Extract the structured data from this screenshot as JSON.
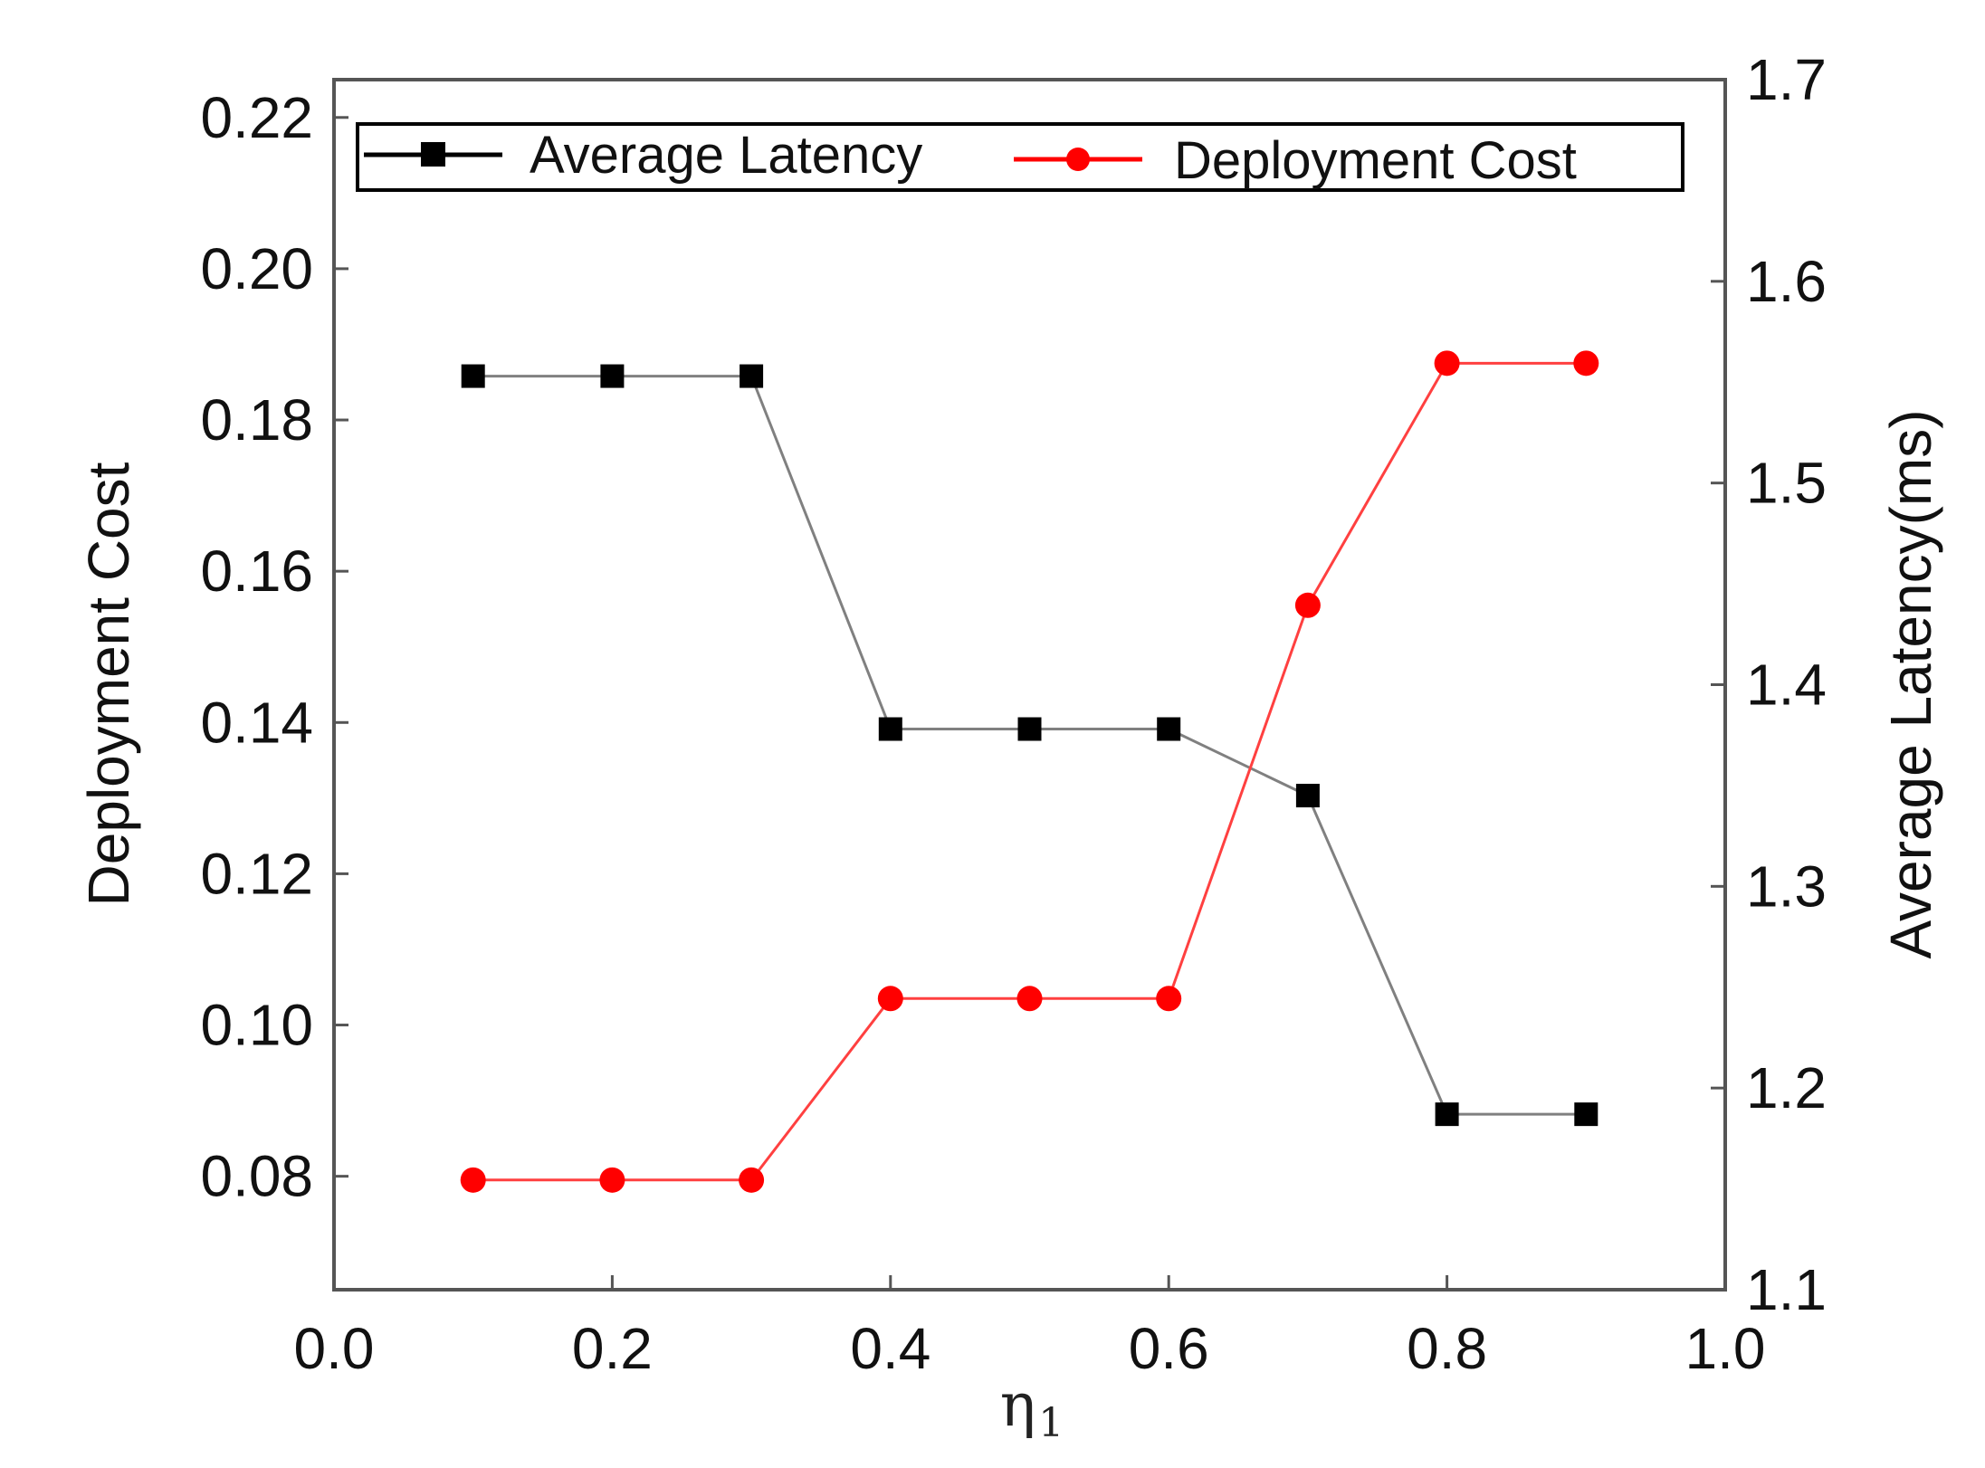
{
  "chart_data": {
    "type": "line",
    "title": "",
    "x": [
      0.1,
      0.2,
      0.3,
      0.4,
      0.5,
      0.6,
      0.7,
      0.8,
      0.9
    ],
    "xlabel_main": "η",
    "xlabel_sub": "1",
    "xlim": [
      0.0,
      1.0
    ],
    "x_ticks": [
      "0.0",
      "0.2",
      "0.4",
      "0.6",
      "0.8",
      "1.0"
    ],
    "ylabel_left": "Deployment Cost",
    "ylim_left": [
      0.065,
      0.225
    ],
    "y_ticks_left": [
      "0.08",
      "0.10",
      "0.12",
      "0.14",
      "0.16",
      "0.18",
      "0.20",
      "0.22"
    ],
    "ylabel_right": "Average Latency(ms)",
    "ylim_right": [
      1.1,
      1.7
    ],
    "y_ticks_right": [
      "1.1",
      "1.2",
      "1.3",
      "1.4",
      "1.5",
      "1.6",
      "1.7"
    ],
    "legend_position": "top",
    "series": [
      {
        "name": "Average Latency",
        "axis": "right",
        "color": "#000000",
        "line_color": "#808080",
        "marker": "square",
        "values": [
          1.553,
          1.553,
          1.553,
          1.378,
          1.378,
          1.378,
          1.345,
          1.187,
          1.187
        ]
      },
      {
        "name": "Deployment Cost",
        "axis": "left",
        "color": "#ff0000",
        "line_color": "#ff4040",
        "marker": "circle",
        "values": [
          0.0795,
          0.0795,
          0.0795,
          0.1035,
          0.1035,
          0.1035,
          0.1555,
          0.1875,
          0.1875
        ]
      }
    ]
  }
}
